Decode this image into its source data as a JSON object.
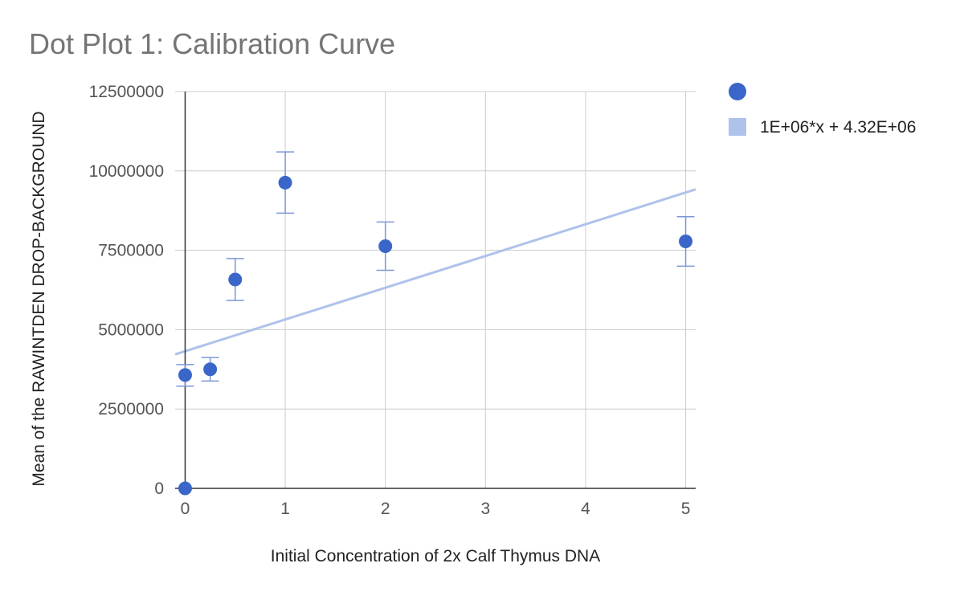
{
  "chart_data": {
    "type": "scatter",
    "title": "Dot Plot 1: Calibration Curve",
    "xlabel": "Initial Concentration of 2x Calf Thymus DNA",
    "ylabel": "Mean of the RAWINTDEN DROP-BACKGROUND",
    "xlim": [
      -0.1,
      5.1
    ],
    "ylim": [
      0,
      12500000
    ],
    "x_ticks": [
      0,
      1,
      2,
      3,
      4,
      5
    ],
    "x_tick_labels": [
      "0",
      "1",
      "2",
      "3",
      "4",
      "5"
    ],
    "y_ticks": [
      0,
      2500000,
      5000000,
      7500000,
      10000000,
      12500000
    ],
    "y_tick_labels": [
      "0",
      "2500000",
      "5000000",
      "7500000",
      "10000000",
      "12500000"
    ],
    "grid": true,
    "legend_position": "right",
    "series": [
      {
        "color": "#3a66c9",
        "points": [
          {
            "x": 0,
            "y": 0
          },
          {
            "x": 0,
            "y": 3570000,
            "err_low": 3220000,
            "err_high": 3900000
          },
          {
            "x": 0.25,
            "y": 3750000,
            "err_low": 3380000,
            "err_high": 4120000
          },
          {
            "x": 0.5,
            "y": 6580000,
            "err_low": 5920000,
            "err_high": 7240000
          },
          {
            "x": 1,
            "y": 9630000,
            "err_low": 8670000,
            "err_high": 10600000
          },
          {
            "x": 2,
            "y": 7630000,
            "err_low": 6870000,
            "err_high": 8390000
          },
          {
            "x": 5,
            "y": 7780000,
            "err_low": 7000000,
            "err_high": 8560000
          }
        ]
      }
    ],
    "trendline": {
      "name": "1E+06*x + 4.32E+06",
      "color": "#aec2ea",
      "slope": 1000000,
      "intercept": 4320000
    }
  }
}
